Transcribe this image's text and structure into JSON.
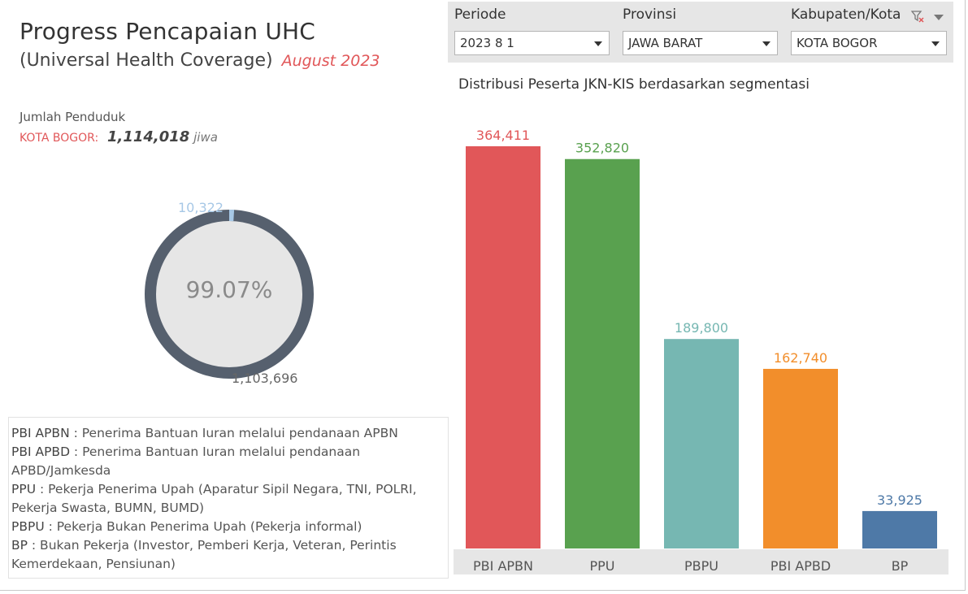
{
  "header": {
    "title": "Progress Pencapaian UHC",
    "subtitle": "(Universal Health Coverage)",
    "month": "August 2023"
  },
  "population": {
    "label": "Jumlah Penduduk",
    "city": "KOTA BOGOR:",
    "value": "1,114,018",
    "unit": "jiwa"
  },
  "coverage": {
    "percent_text": "99.07%",
    "percent": 99.07,
    "uncovered": "10,322",
    "covered": "1,103,696",
    "covered_color": "#56606e",
    "uncovered_color": "#a7c8e6",
    "inner_color": "#e6e6e6"
  },
  "legend": [
    {
      "abbr": "PBI APBN",
      "desc": " : Penerima Bantuan Iuran melalui pendanaan APBN"
    },
    {
      "abbr": "PBI APBD",
      "desc": " : Penerima Bantuan Iuran melalui pendanaan APBD/Jamkesda"
    },
    {
      "abbr": "PPU",
      "desc": " : Pekerja Penerima Upah (Aparatur Sipil Negara, TNI, POLRI, Pekerja Swasta, BUMN, BUMD)"
    },
    {
      "abbr": "PBPU",
      "desc": " : Pekerja Bukan Penerima Upah (Pekerja informal)"
    },
    {
      "abbr": "BP",
      "desc": " : Bukan Pekerja (Investor, Pemberi Kerja, Veteran, Perintis Kemerdekaan, Pensiunan)"
    }
  ],
  "filters": {
    "periode": {
      "label": "Periode",
      "value": "2023 8 1"
    },
    "provinsi": {
      "label": "Provinsi",
      "value": "JAWA BARAT"
    },
    "kabupaten": {
      "label": "Kabupaten/Kota",
      "value": "KOTA BOGOR"
    }
  },
  "chart_data": {
    "type": "bar",
    "title": "Distribusi Peserta JKN-KIS berdasarkan segmentasi",
    "categories": [
      "PBI APBN",
      "PPU",
      "PBPU",
      "PBI APBD",
      "BP"
    ],
    "values": [
      364411,
      352820,
      189800,
      162740,
      33925
    ],
    "value_labels": [
      "364,411",
      "352,820",
      "189,800",
      "162,740",
      "33,925"
    ],
    "colors": [
      "#e15759",
      "#59a14f",
      "#76b7b2",
      "#f28e2b",
      "#4e79a7"
    ],
    "xlabel": "",
    "ylabel": "",
    "ylim": [
      0,
      364411
    ],
    "grid": false
  }
}
